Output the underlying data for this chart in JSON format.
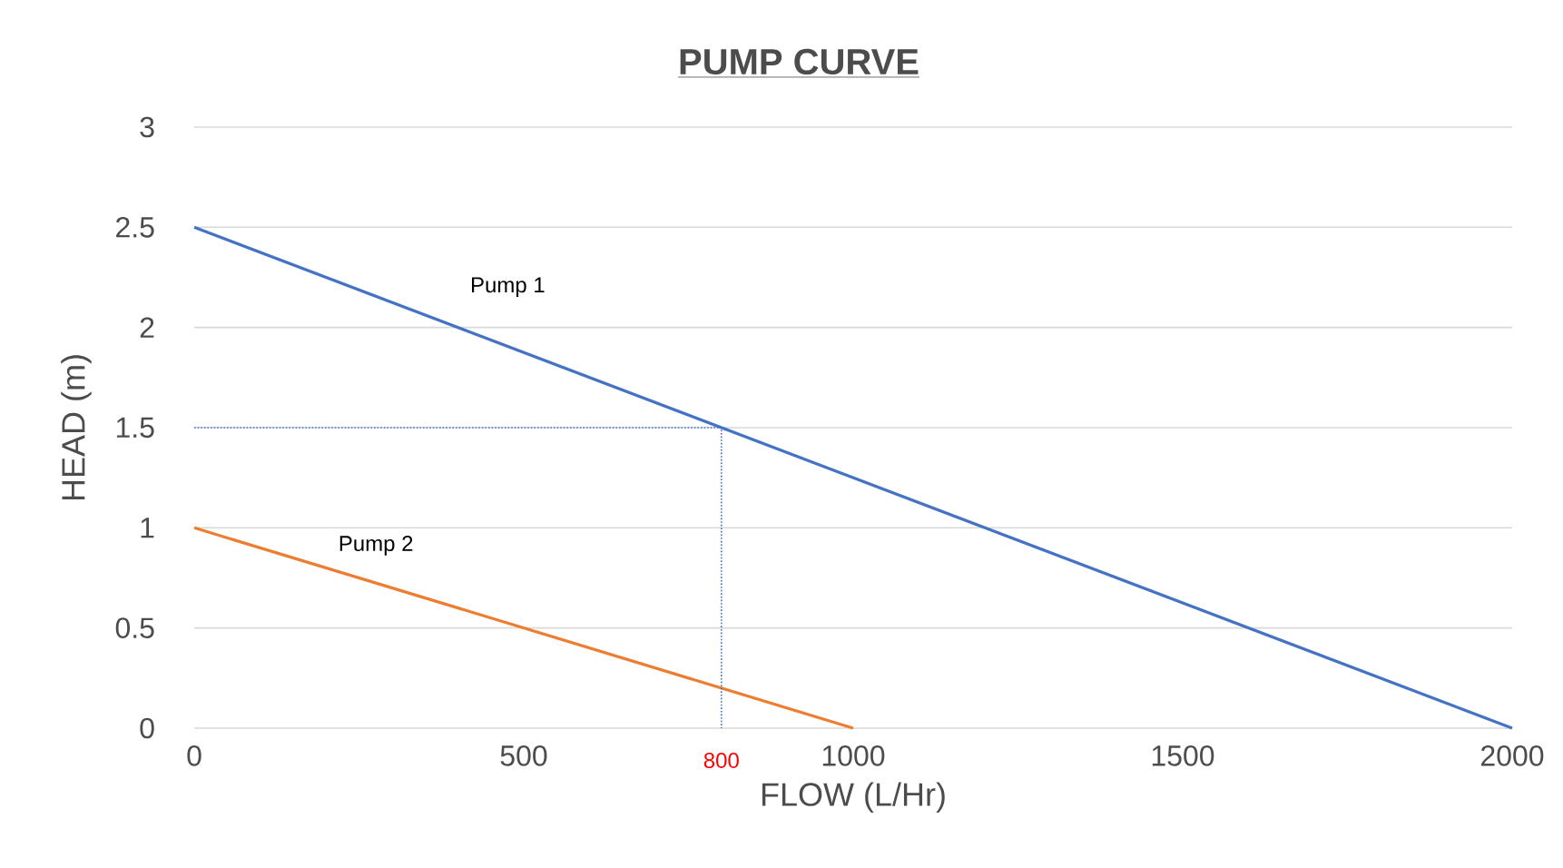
{
  "chart_data": {
    "type": "line",
    "title": "PUMP CURVE",
    "xlabel": "FLOW (L/Hr)",
    "ylabel": "HEAD (m)",
    "series": [
      {
        "name": "Pump 1",
        "color": "#4472c4",
        "x": [
          0,
          2000
        ],
        "values": [
          2.5,
          0
        ]
      },
      {
        "name": "Pump 2",
        "color": "#ed7d31",
        "x": [
          0,
          1000
        ],
        "values": [
          1,
          0
        ]
      },
      {
        "color": "#4472c4",
        "line_style": "dotted",
        "x": [
          0,
          800,
          800
        ],
        "values": [
          1.5,
          1.5,
          0
        ]
      }
    ],
    "annotations": [
      {
        "text": "800",
        "x": 800,
        "y": 0
      }
    ],
    "xlim": [
      0,
      2000
    ],
    "xticks": [
      0,
      500,
      1000,
      1500,
      2000
    ],
    "ylim": [
      0,
      3
    ],
    "yticks": [
      0,
      0.5,
      1,
      1.5,
      2,
      2.5,
      3
    ],
    "grid": "y",
    "marker": "none",
    "line_style": "solid"
  }
}
